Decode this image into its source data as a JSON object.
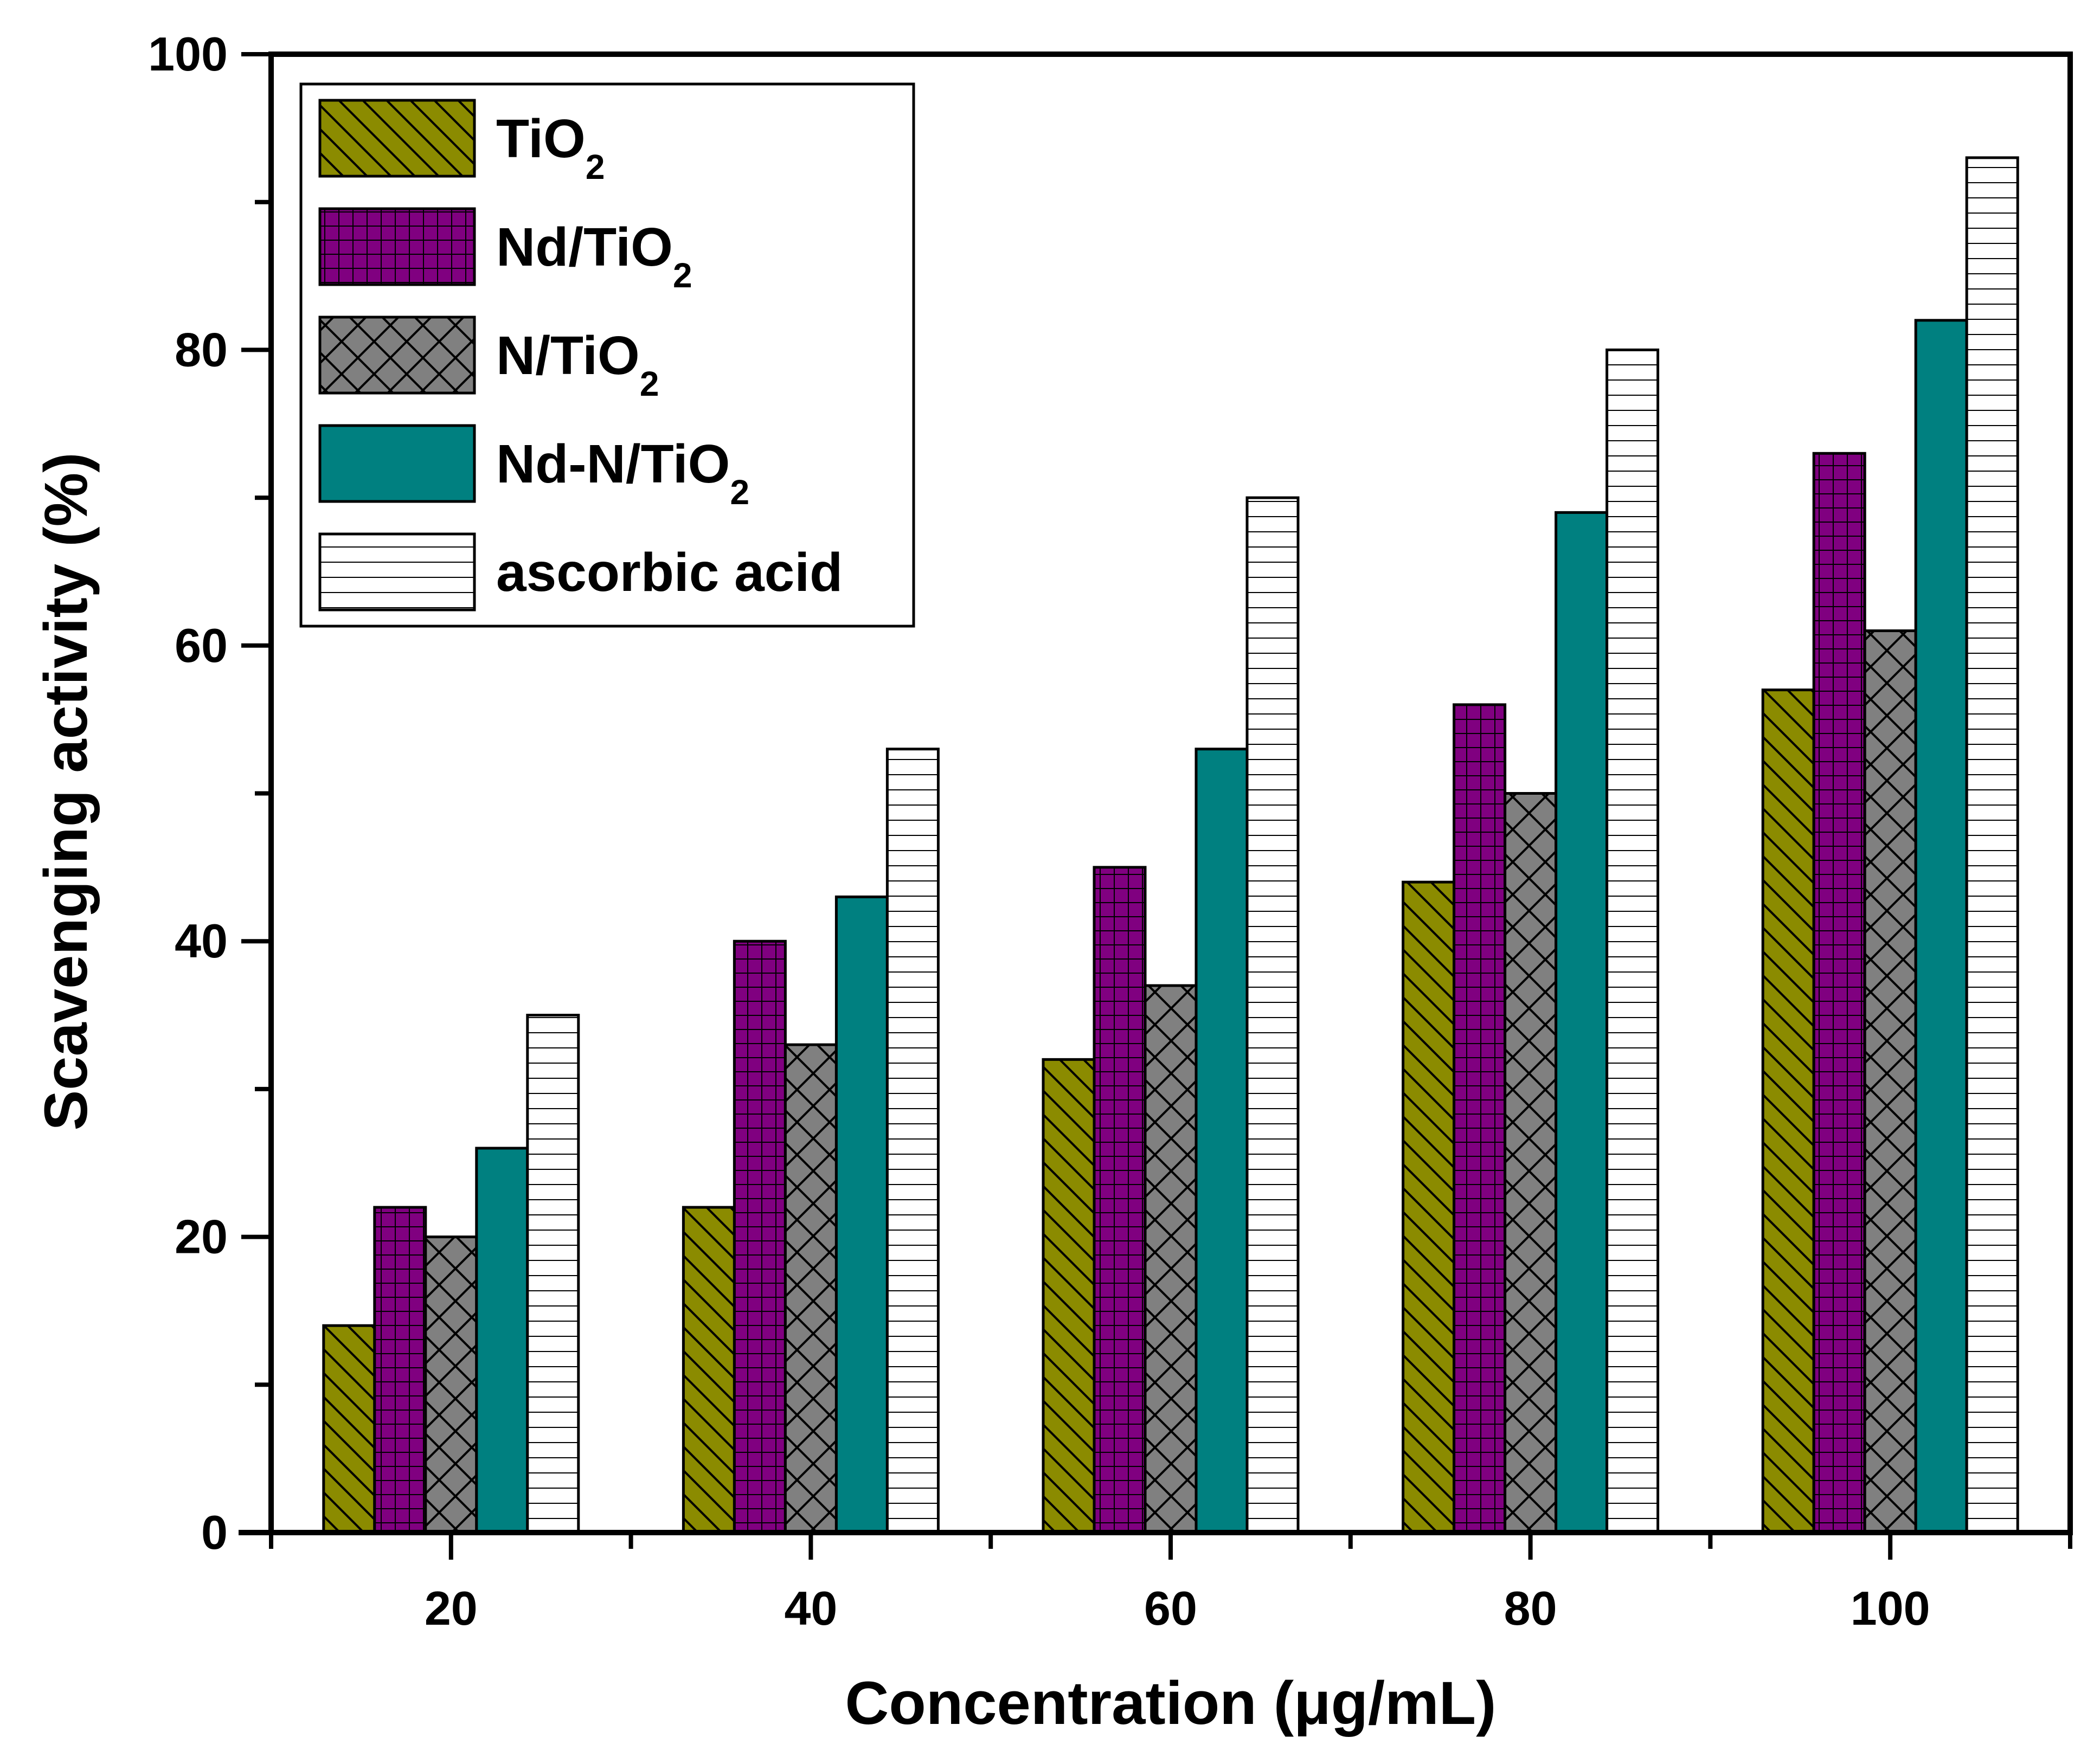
{
  "chart_data": {
    "type": "bar",
    "title": "",
    "xlabel": "Concentration (μg/mL)",
    "ylabel": "Scavenging activity (%)",
    "ylim": [
      0,
      100
    ],
    "yticks": [
      0,
      20,
      40,
      60,
      80,
      100
    ],
    "categories": [
      "20",
      "40",
      "60",
      "80",
      "100"
    ],
    "legend_position": "top-left",
    "grid": false,
    "series": [
      {
        "name": "TiO",
        "subscript": "2",
        "color": "#8b8b00",
        "pattern": "diagonal",
        "values": [
          14,
          22,
          32,
          44,
          57
        ]
      },
      {
        "name": "Nd/TiO",
        "subscript": "2",
        "color": "#800080",
        "pattern": "grid",
        "values": [
          22,
          40,
          45,
          56,
          73
        ]
      },
      {
        "name": "N/TiO",
        "subscript": "2",
        "color": "#808080",
        "pattern": "crosshatch",
        "values": [
          20,
          33,
          37,
          50,
          61
        ]
      },
      {
        "name": "Nd-N/TiO",
        "subscript": "2",
        "color": "#008080",
        "pattern": "solid",
        "values": [
          26,
          43,
          53,
          69,
          82
        ]
      },
      {
        "name": "ascorbic acid",
        "subscript": "",
        "color": "#ffffff",
        "pattern": "horizontal",
        "values": [
          35,
          53,
          70,
          80,
          93
        ]
      }
    ]
  }
}
